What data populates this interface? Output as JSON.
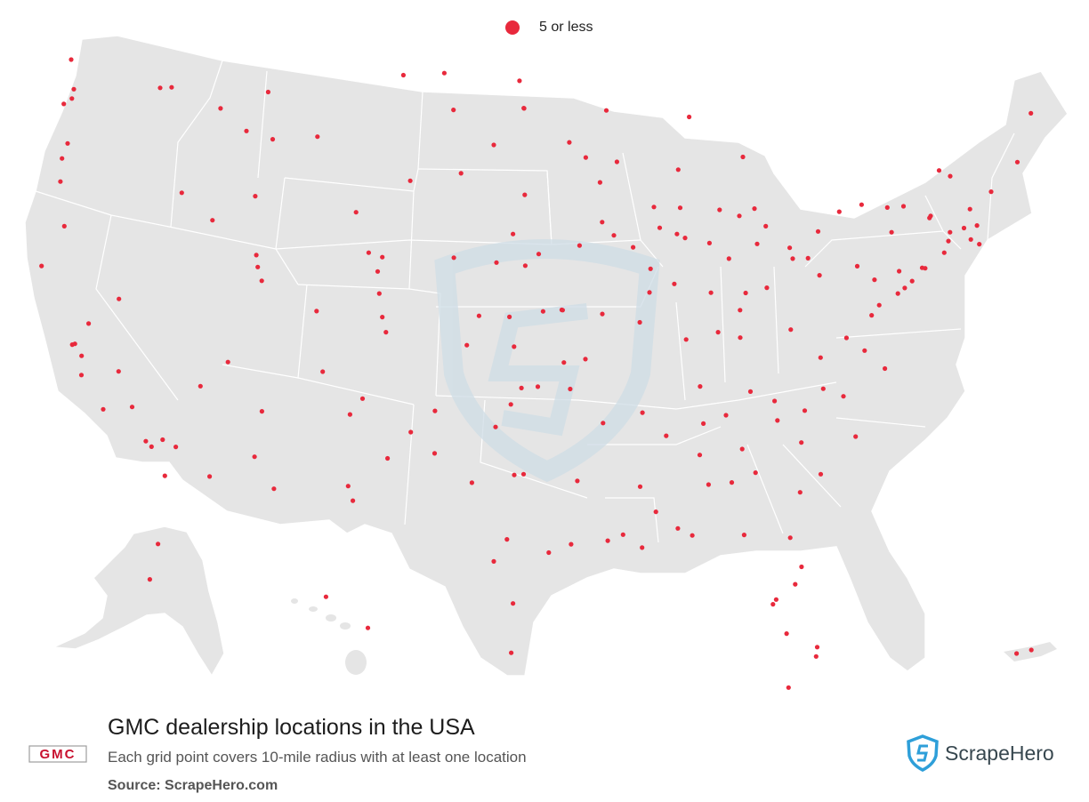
{
  "legend": {
    "label": "5 or less",
    "color": "#e8293c"
  },
  "footer": {
    "title": "GMC dealership locations in the USA",
    "subtitle": "Each grid point covers 10-mile radius with at least one location",
    "source": "Source: ScrapeHero.com"
  },
  "brand": {
    "logo_text": "GMC",
    "name": "ScrapeHero"
  },
  "map": {
    "land_color": "#e5e5e5",
    "border_color": "#ffffff",
    "dot_color": "#e8293c",
    "watermark_color": "#cfdde6"
  },
  "locations": [
    [
      -122.33,
      47.61
    ],
    [
      -122.44,
      47.25
    ],
    [
      -122.9,
      47.04
    ],
    [
      -122.48,
      48.75
    ],
    [
      -117.43,
      47.66
    ],
    [
      -123.0,
      44.94
    ],
    [
      -122.68,
      45.52
    ],
    [
      -123.09,
      44.05
    ],
    [
      -122.87,
      42.33
    ],
    [
      -124.16,
      40.8
    ],
    [
      -121.49,
      38.58
    ],
    [
      -122.42,
      37.77
    ],
    [
      -121.89,
      37.34
    ],
    [
      -122.27,
      37.8
    ],
    [
      -119.79,
      36.74
    ],
    [
      -119.02,
      35.37
    ],
    [
      -118.24,
      34.05
    ],
    [
      -117.92,
      33.84
    ],
    [
      -117.16,
      32.72
    ],
    [
      -117.29,
      34.11
    ],
    [
      -116.54,
      33.83
    ],
    [
      -120.66,
      35.28
    ],
    [
      -121.9,
      36.6
    ],
    [
      -119.77,
      39.53
    ],
    [
      -115.14,
      36.17
    ],
    [
      -112.07,
      33.45
    ],
    [
      -110.97,
      32.22
    ],
    [
      -111.65,
      35.2
    ],
    [
      -114.62,
      32.69
    ],
    [
      -111.89,
      40.76
    ],
    [
      -111.97,
      41.22
    ],
    [
      -111.66,
      40.23
    ],
    [
      -113.58,
      37.1
    ],
    [
      -116.2,
      43.62
    ],
    [
      -112.03,
      43.49
    ],
    [
      -114.46,
      42.56
    ],
    [
      -116.78,
      47.68
    ],
    [
      -114.0,
      46.87
    ],
    [
      -108.5,
      45.78
    ],
    [
      -111.04,
      45.68
    ],
    [
      -112.53,
      46.0
    ],
    [
      -111.3,
      47.5
    ],
    [
      -104.82,
      41.14
    ],
    [
      -106.31,
      42.87
    ],
    [
      -105.59,
      41.31
    ],
    [
      -104.99,
      39.74
    ],
    [
      -104.82,
      38.83
    ],
    [
      -104.61,
      38.25
    ],
    [
      -105.08,
      40.59
    ],
    [
      -108.55,
      39.06
    ],
    [
      -106.65,
      35.08
    ],
    [
      -105.94,
      35.69
    ],
    [
      -106.76,
      32.32
    ],
    [
      -103.2,
      34.4
    ],
    [
      -104.52,
      33.39
    ],
    [
      -108.2,
      36.73
    ],
    [
      -96.7,
      40.81
    ],
    [
      -95.94,
      41.26
    ],
    [
      -98.34,
      40.93
    ],
    [
      -100.76,
      41.12
    ],
    [
      -97.4,
      42.03
    ],
    [
      -96.73,
      43.54
    ],
    [
      -103.23,
      44.08
    ],
    [
      -98.49,
      45.46
    ],
    [
      -100.35,
      44.37
    ],
    [
      -96.79,
      46.88
    ],
    [
      -100.78,
      46.81
    ],
    [
      -101.3,
      48.23
    ],
    [
      -97.03,
      47.93
    ],
    [
      -103.62,
      48.15
    ],
    [
      -97.34,
      37.69
    ],
    [
      -95.69,
      39.05
    ],
    [
      -94.63,
      39.11
    ],
    [
      -99.33,
      38.88
    ],
    [
      -100.02,
      37.75
    ],
    [
      -97.6,
      38.84
    ],
    [
      -97.52,
      35.47
    ],
    [
      -95.99,
      36.15
    ],
    [
      -98.39,
      34.6
    ],
    [
      -96.92,
      36.1
    ],
    [
      -96.8,
      32.78
    ],
    [
      -97.33,
      32.75
    ],
    [
      -95.37,
      29.76
    ],
    [
      -98.49,
      29.42
    ],
    [
      -97.74,
      30.27
    ],
    [
      -101.85,
      33.58
    ],
    [
      -106.49,
      31.76
    ],
    [
      -97.4,
      27.8
    ],
    [
      -97.5,
      25.9
    ],
    [
      -101.83,
      35.22
    ],
    [
      -99.73,
      32.45
    ],
    [
      -94.1,
      30.08
    ],
    [
      -93.27,
      44.98
    ],
    [
      -92.1,
      46.79
    ],
    [
      -92.46,
      44.02
    ],
    [
      -94.2,
      45.56
    ],
    [
      -96.77,
      46.87
    ],
    [
      -93.62,
      41.59
    ],
    [
      -91.67,
      41.98
    ],
    [
      -90.58,
      41.52
    ],
    [
      -92.34,
      42.49
    ],
    [
      -94.58,
      39.1
    ],
    [
      -90.2,
      38.63
    ],
    [
      -93.29,
      37.21
    ],
    [
      -92.33,
      38.95
    ],
    [
      -94.51,
      37.08
    ],
    [
      -92.29,
      34.75
    ],
    [
      -94.15,
      36.06
    ],
    [
      -93.75,
      32.52
    ],
    [
      -91.15,
      30.45
    ],
    [
      -90.07,
      29.95
    ],
    [
      -92.02,
      30.22
    ],
    [
      -90.18,
      32.3
    ],
    [
      -88.7,
      34.26
    ],
    [
      -89.29,
      31.33
    ],
    [
      -87.91,
      43.04
    ],
    [
      -89.4,
      43.07
    ],
    [
      -88.02,
      44.51
    ],
    [
      -91.5,
      44.81
    ],
    [
      -87.63,
      41.88
    ],
    [
      -88.09,
      42.03
    ],
    [
      -89.59,
      40.69
    ],
    [
      -89.65,
      39.78
    ],
    [
      -88.24,
      40.11
    ],
    [
      -89.07,
      42.27
    ],
    [
      -86.16,
      39.77
    ],
    [
      -85.14,
      41.08
    ],
    [
      -87.57,
      37.97
    ],
    [
      -86.25,
      41.68
    ],
    [
      -83.05,
      42.33
    ],
    [
      -85.67,
      42.96
    ],
    [
      -84.55,
      42.73
    ],
    [
      -83.69,
      43.01
    ],
    [
      -84.35,
      45.0
    ],
    [
      -87.4,
      46.54
    ],
    [
      -82.99,
      39.96
    ],
    [
      -81.69,
      41.5
    ],
    [
      -84.51,
      39.1
    ],
    [
      -83.54,
      41.65
    ],
    [
      -81.52,
      41.08
    ],
    [
      -80.65,
      41.1
    ],
    [
      -84.19,
      39.76
    ],
    [
      -85.76,
      38.25
    ],
    [
      -84.5,
      38.04
    ],
    [
      -86.78,
      36.16
    ],
    [
      -83.92,
      35.96
    ],
    [
      -90.05,
      35.15
    ],
    [
      -85.31,
      35.05
    ],
    [
      -86.8,
      33.52
    ],
    [
      -86.59,
      34.73
    ],
    [
      -86.3,
      32.38
    ],
    [
      -88.04,
      30.69
    ],
    [
      -84.39,
      33.75
    ],
    [
      -81.1,
      32.08
    ],
    [
      -83.63,
      32.84
    ],
    [
      -84.98,
      32.46
    ],
    [
      -82.46,
      27.95
    ],
    [
      -81.38,
      28.54
    ],
    [
      -80.19,
      25.76
    ],
    [
      -81.66,
      30.33
    ],
    [
      -84.28,
      30.44
    ],
    [
      -87.22,
      30.42
    ],
    [
      -80.13,
      26.12
    ],
    [
      -81.87,
      26.64
    ],
    [
      -82.64,
      27.77
    ],
    [
      -81.02,
      29.21
    ],
    [
      -81.76,
      24.56
    ],
    [
      -80.84,
      35.23
    ],
    [
      -78.64,
      35.78
    ],
    [
      -79.79,
      36.07
    ],
    [
      -77.95,
      34.23
    ],
    [
      -82.55,
      35.6
    ],
    [
      -81.03,
      34.0
    ],
    [
      -79.93,
      32.78
    ],
    [
      -82.39,
      34.85
    ],
    [
      -77.44,
      37.54
    ],
    [
      -76.29,
      36.85
    ],
    [
      -79.94,
      37.27
    ],
    [
      -78.47,
      38.03
    ],
    [
      -81.63,
      38.35
    ],
    [
      -80.0,
      40.44
    ],
    [
      -75.16,
      39.95
    ],
    [
      -76.88,
      40.27
    ],
    [
      -75.48,
      40.6
    ],
    [
      -77.86,
      40.79
    ],
    [
      -80.08,
      42.13
    ],
    [
      -76.61,
      39.29
    ],
    [
      -77.04,
      38.9
    ],
    [
      -75.55,
      39.74
    ],
    [
      -74.17,
      40.73
    ],
    [
      -74.74,
      40.22
    ],
    [
      -74.0,
      40.71
    ],
    [
      -73.76,
      42.65
    ],
    [
      -78.88,
      42.89
    ],
    [
      -77.61,
      43.16
    ],
    [
      -76.15,
      43.05
    ],
    [
      -75.23,
      43.1
    ],
    [
      -75.91,
      42.1
    ],
    [
      -73.69,
      42.73
    ],
    [
      -72.68,
      41.76
    ],
    [
      -72.92,
      41.31
    ],
    [
      -71.41,
      41.82
    ],
    [
      -71.06,
      42.36
    ],
    [
      -71.8,
      42.26
    ],
    [
      -72.59,
      42.1
    ],
    [
      -71.46,
      42.99
    ],
    [
      -70.26,
      43.66
    ],
    [
      -68.77,
      44.8
    ],
    [
      -73.21,
      44.48
    ],
    [
      -72.58,
      44.26
    ],
    [
      -70.93,
      41.64
    ],
    [
      -68.0,
      46.68
    ],
    [
      -149.9,
      61.22
    ],
    [
      -147.72,
      64.84
    ],
    [
      -157.86,
      21.31
    ],
    [
      -155.09,
      19.72
    ],
    [
      -66.1,
      18.47
    ],
    [
      -67.14,
      18.2
    ]
  ]
}
